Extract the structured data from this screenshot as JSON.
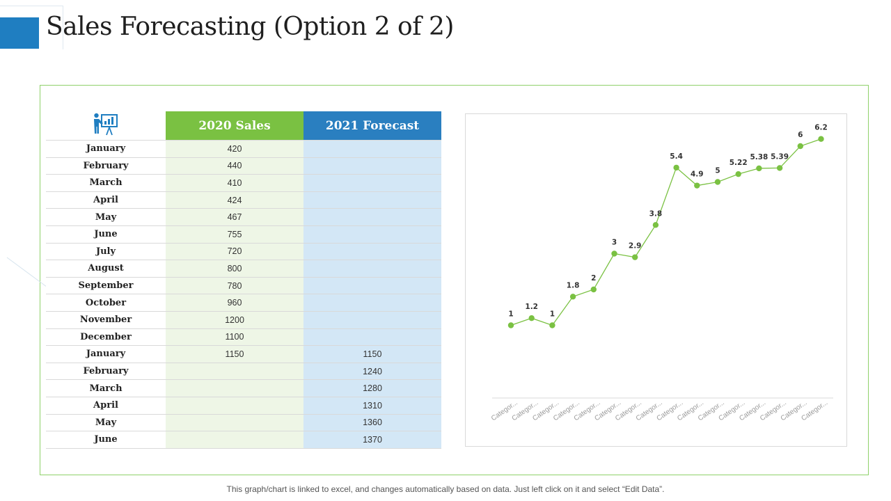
{
  "page": {
    "title": "Sales Forecasting (Option 2 of 2)",
    "footnote": "This graph/chart is linked to excel, and changes automatically based on data. Just left click on it and select “Edit Data”."
  },
  "colors": {
    "accent_blue": "#1f7ec1",
    "sales_header": "#7ac142",
    "sales_cell": "#eef6e6",
    "forecast_header": "#2a7fc0",
    "forecast_cell": "#d3e7f6",
    "chart_line": "#7ac142",
    "panel_border": "#8fd16a"
  },
  "table": {
    "icon": "presentation-icon",
    "headers": {
      "sales": "2020 Sales",
      "forecast": "2021 Forecast"
    },
    "rows": [
      {
        "month": "January",
        "sales": "420",
        "forecast": ""
      },
      {
        "month": "February",
        "sales": "440",
        "forecast": ""
      },
      {
        "month": "March",
        "sales": "410",
        "forecast": ""
      },
      {
        "month": "April",
        "sales": "424",
        "forecast": ""
      },
      {
        "month": "May",
        "sales": "467",
        "forecast": ""
      },
      {
        "month": "June",
        "sales": "755",
        "forecast": ""
      },
      {
        "month": "July",
        "sales": "720",
        "forecast": ""
      },
      {
        "month": "August",
        "sales": "800",
        "forecast": ""
      },
      {
        "month": "September",
        "sales": "780",
        "forecast": ""
      },
      {
        "month": "October",
        "sales": "960",
        "forecast": ""
      },
      {
        "month": "November",
        "sales": "1200",
        "forecast": ""
      },
      {
        "month": "December",
        "sales": "1100",
        "forecast": ""
      },
      {
        "month": "January",
        "sales": "1150",
        "forecast": "1150"
      },
      {
        "month": "February",
        "sales": "",
        "forecast": "1240"
      },
      {
        "month": "March",
        "sales": "",
        "forecast": "1280"
      },
      {
        "month": "April",
        "sales": "",
        "forecast": "1310"
      },
      {
        "month": "May",
        "sales": "",
        "forecast": "1360"
      },
      {
        "month": "June",
        "sales": "",
        "forecast": "1370"
      }
    ]
  },
  "chart_data": {
    "type": "line",
    "categories": [
      "Categor...",
      "Categor...",
      "Categor...",
      "Categor...",
      "Categor...",
      "Categor...",
      "Categor...",
      "Categor...",
      "Categor...",
      "Categor...",
      "Categor...",
      "Categor...",
      "Categor...",
      "Categor...",
      "Categor...",
      "Categor..."
    ],
    "series": [
      {
        "values": [
          1,
          1.2,
          1,
          1.8,
          2,
          3,
          2.9,
          3.8,
          5.4,
          4.9,
          5,
          5.22,
          5.38,
          5.39,
          6,
          6.2
        ]
      }
    ],
    "data_labels": [
      "1",
      "1.2",
      "1",
      "1.8",
      "2",
      "3",
      "2.9",
      "3.8",
      "5.4",
      "4.9",
      "5",
      "5.22",
      "5.38",
      "5.39",
      "6",
      "6.2"
    ],
    "ylim": [
      0,
      7
    ],
    "grid": false,
    "legend": "none"
  }
}
